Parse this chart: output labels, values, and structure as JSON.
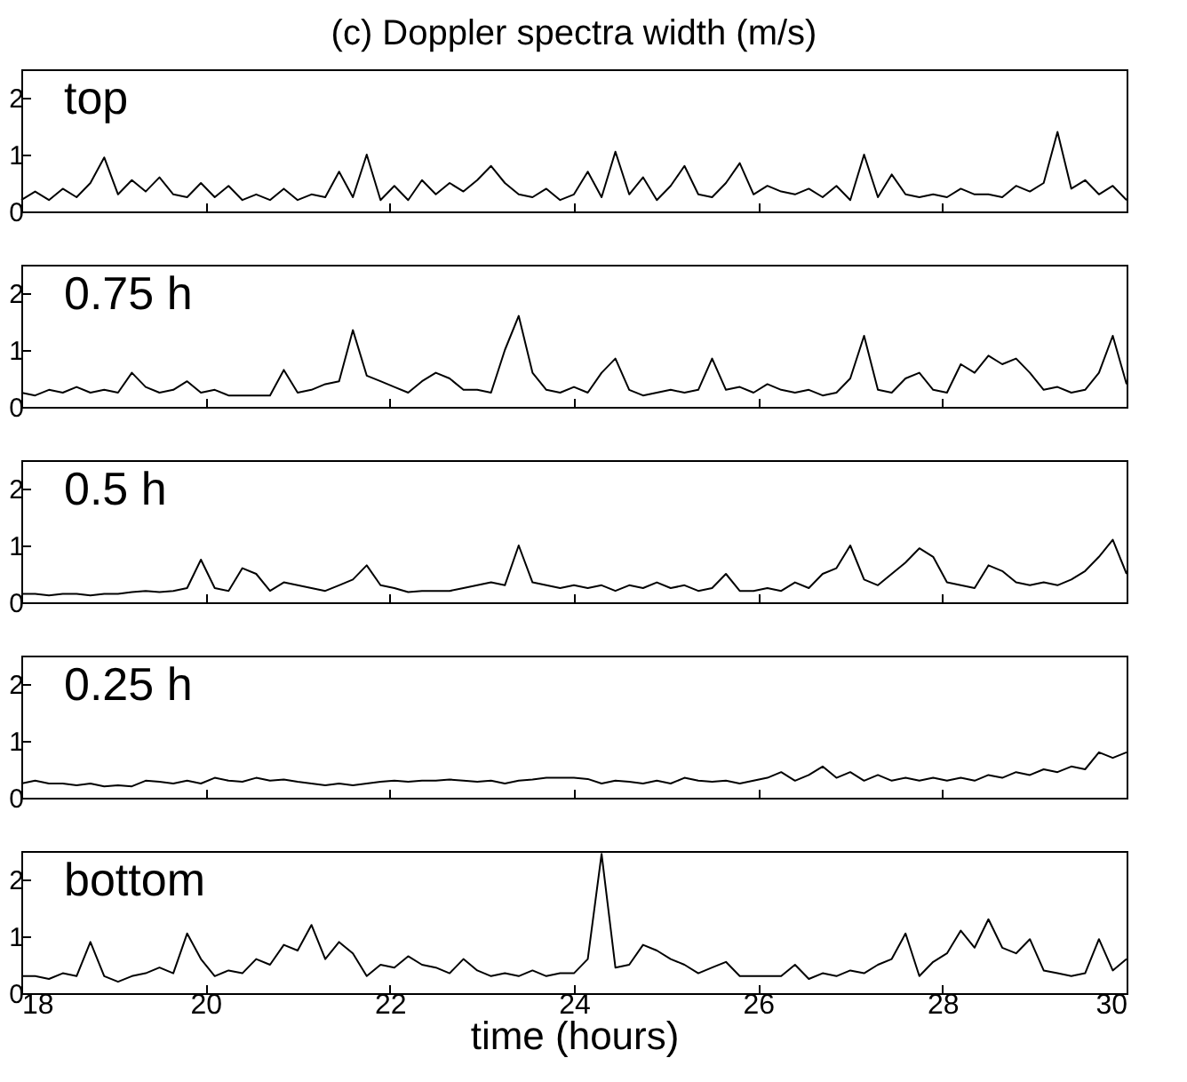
{
  "chart_data": [
    {
      "type": "line",
      "title": "(c) Doppler spectra width (m/s)",
      "annotations": [
        "top"
      ],
      "xlim": [
        18,
        30
      ],
      "xticks": [
        18,
        20,
        22,
        24,
        26,
        28,
        30
      ],
      "ylim": [
        0,
        2.5
      ],
      "yticks": [
        0,
        1,
        2
      ],
      "tick_labels": "y",
      "x": [
        18,
        18.15,
        18.3,
        18.45,
        18.6,
        18.75,
        18.9,
        19.05,
        19.2,
        19.35,
        19.5,
        19.65,
        19.8,
        19.95,
        20.1,
        20.25,
        20.4,
        20.55,
        20.7,
        20.85,
        21,
        21.15,
        21.3,
        21.45,
        21.6,
        21.75,
        21.9,
        22.05,
        22.2,
        22.35,
        22.5,
        22.65,
        22.8,
        22.95,
        23.1,
        23.25,
        23.4,
        23.55,
        23.7,
        23.85,
        24,
        24.15,
        24.3,
        24.45,
        24.6,
        24.75,
        24.9,
        25.05,
        25.2,
        25.35,
        25.5,
        25.65,
        25.8,
        25.95,
        26.1,
        26.25,
        26.4,
        26.55,
        26.7,
        26.85,
        27,
        27.15,
        27.3,
        27.45,
        27.6,
        27.75,
        27.9,
        28.05,
        28.2,
        28.35,
        28.5,
        28.65,
        28.8,
        28.95,
        29.1,
        29.25,
        29.4,
        29.55,
        29.7,
        29.85,
        30
      ],
      "series": [
        {
          "color": "#000000",
          "values": [
            0.2,
            0.35,
            0.2,
            0.4,
            0.25,
            0.5,
            0.95,
            0.3,
            0.55,
            0.35,
            0.6,
            0.3,
            0.25,
            0.5,
            0.25,
            0.45,
            0.2,
            0.3,
            0.2,
            0.4,
            0.2,
            0.3,
            0.25,
            0.7,
            0.25,
            1.0,
            0.2,
            0.45,
            0.2,
            0.55,
            0.3,
            0.5,
            0.35,
            0.55,
            0.8,
            0.5,
            0.3,
            0.25,
            0.4,
            0.2,
            0.3,
            0.7,
            0.25,
            1.05,
            0.3,
            0.6,
            0.2,
            0.45,
            0.8,
            0.3,
            0.25,
            0.5,
            0.85,
            0.3,
            0.45,
            0.35,
            0.3,
            0.4,
            0.25,
            0.45,
            0.2,
            1.0,
            0.25,
            0.65,
            0.3,
            0.25,
            0.3,
            0.25,
            0.4,
            0.3,
            0.3,
            0.25,
            0.45,
            0.35,
            0.5,
            1.4,
            0.4,
            0.55,
            0.3,
            0.45,
            0.2
          ]
        }
      ]
    },
    {
      "type": "line",
      "annotations": [
        "0.75 h"
      ],
      "xlim": [
        18,
        30
      ],
      "xticks": [
        18,
        20,
        22,
        24,
        26,
        28,
        30
      ],
      "ylim": [
        0,
        2.5
      ],
      "yticks": [
        0,
        1,
        2
      ],
      "tick_labels": "y",
      "x": [
        18,
        18.15,
        18.3,
        18.45,
        18.6,
        18.75,
        18.9,
        19.05,
        19.2,
        19.35,
        19.5,
        19.65,
        19.8,
        19.95,
        20.1,
        20.25,
        20.4,
        20.55,
        20.7,
        20.85,
        21,
        21.15,
        21.3,
        21.45,
        21.6,
        21.75,
        21.9,
        22.05,
        22.2,
        22.35,
        22.5,
        22.65,
        22.8,
        22.95,
        23.1,
        23.25,
        23.4,
        23.55,
        23.7,
        23.85,
        24,
        24.15,
        24.3,
        24.45,
        24.6,
        24.75,
        24.9,
        25.05,
        25.2,
        25.35,
        25.5,
        25.65,
        25.8,
        25.95,
        26.1,
        26.25,
        26.4,
        26.55,
        26.7,
        26.85,
        27,
        27.15,
        27.3,
        27.45,
        27.6,
        27.75,
        27.9,
        28.05,
        28.2,
        28.35,
        28.5,
        28.65,
        28.8,
        28.95,
        29.1,
        29.25,
        29.4,
        29.55,
        29.7,
        29.85,
        30
      ],
      "series": [
        {
          "color": "#000000",
          "values": [
            0.25,
            0.2,
            0.3,
            0.25,
            0.35,
            0.25,
            0.3,
            0.25,
            0.6,
            0.35,
            0.25,
            0.3,
            0.45,
            0.25,
            0.3,
            0.2,
            0.2,
            0.2,
            0.2,
            0.65,
            0.25,
            0.3,
            0.4,
            0.45,
            1.35,
            0.55,
            0.45,
            0.35,
            0.25,
            0.45,
            0.6,
            0.5,
            0.3,
            0.3,
            0.25,
            1.0,
            1.6,
            0.6,
            0.3,
            0.25,
            0.35,
            0.25,
            0.6,
            0.85,
            0.3,
            0.2,
            0.25,
            0.3,
            0.25,
            0.3,
            0.85,
            0.3,
            0.35,
            0.25,
            0.4,
            0.3,
            0.25,
            0.3,
            0.2,
            0.25,
            0.5,
            1.25,
            0.3,
            0.25,
            0.5,
            0.6,
            0.3,
            0.25,
            0.75,
            0.6,
            0.9,
            0.75,
            0.85,
            0.6,
            0.3,
            0.35,
            0.25,
            0.3,
            0.6,
            1.25,
            0.4
          ]
        }
      ]
    },
    {
      "type": "line",
      "annotations": [
        "0.5 h"
      ],
      "xlim": [
        18,
        30
      ],
      "xticks": [
        18,
        20,
        22,
        24,
        26,
        28,
        30
      ],
      "ylim": [
        0,
        2.5
      ],
      "yticks": [
        0,
        1,
        2
      ],
      "tick_labels": "y",
      "x": [
        18,
        18.15,
        18.3,
        18.45,
        18.6,
        18.75,
        18.9,
        19.05,
        19.2,
        19.35,
        19.5,
        19.65,
        19.8,
        19.95,
        20.1,
        20.25,
        20.4,
        20.55,
        20.7,
        20.85,
        21,
        21.15,
        21.3,
        21.45,
        21.6,
        21.75,
        21.9,
        22.05,
        22.2,
        22.35,
        22.5,
        22.65,
        22.8,
        22.95,
        23.1,
        23.25,
        23.4,
        23.55,
        23.7,
        23.85,
        24,
        24.15,
        24.3,
        24.45,
        24.6,
        24.75,
        24.9,
        25.05,
        25.2,
        25.35,
        25.5,
        25.65,
        25.8,
        25.95,
        26.1,
        26.25,
        26.4,
        26.55,
        26.7,
        26.85,
        27,
        27.15,
        27.3,
        27.45,
        27.6,
        27.75,
        27.9,
        28.05,
        28.2,
        28.35,
        28.5,
        28.65,
        28.8,
        28.95,
        29.1,
        29.25,
        29.4,
        29.55,
        29.7,
        29.85,
        30
      ],
      "series": [
        {
          "color": "#000000",
          "values": [
            0.15,
            0.15,
            0.12,
            0.15,
            0.15,
            0.12,
            0.15,
            0.15,
            0.18,
            0.2,
            0.18,
            0.2,
            0.25,
            0.75,
            0.25,
            0.2,
            0.6,
            0.5,
            0.2,
            0.35,
            0.3,
            0.25,
            0.2,
            0.3,
            0.4,
            0.65,
            0.3,
            0.25,
            0.18,
            0.2,
            0.2,
            0.2,
            0.25,
            0.3,
            0.35,
            0.3,
            1.0,
            0.35,
            0.3,
            0.25,
            0.3,
            0.25,
            0.3,
            0.2,
            0.3,
            0.25,
            0.35,
            0.25,
            0.3,
            0.2,
            0.25,
            0.5,
            0.2,
            0.2,
            0.25,
            0.2,
            0.35,
            0.25,
            0.5,
            0.6,
            1.0,
            0.4,
            0.3,
            0.5,
            0.7,
            0.95,
            0.8,
            0.35,
            0.3,
            0.25,
            0.65,
            0.55,
            0.35,
            0.3,
            0.35,
            0.3,
            0.4,
            0.55,
            0.8,
            1.1,
            0.5
          ]
        }
      ]
    },
    {
      "type": "line",
      "annotations": [
        "0.25 h"
      ],
      "xlim": [
        18,
        30
      ],
      "xticks": [
        18,
        20,
        22,
        24,
        26,
        28,
        30
      ],
      "ylim": [
        0,
        2.5
      ],
      "yticks": [
        0,
        1,
        2
      ],
      "tick_labels": "y",
      "x": [
        18,
        18.15,
        18.3,
        18.45,
        18.6,
        18.75,
        18.9,
        19.05,
        19.2,
        19.35,
        19.5,
        19.65,
        19.8,
        19.95,
        20.1,
        20.25,
        20.4,
        20.55,
        20.7,
        20.85,
        21,
        21.15,
        21.3,
        21.45,
        21.6,
        21.75,
        21.9,
        22.05,
        22.2,
        22.35,
        22.5,
        22.65,
        22.8,
        22.95,
        23.1,
        23.25,
        23.4,
        23.55,
        23.7,
        23.85,
        24,
        24.15,
        24.3,
        24.45,
        24.6,
        24.75,
        24.9,
        25.05,
        25.2,
        25.35,
        25.5,
        25.65,
        25.8,
        25.95,
        26.1,
        26.25,
        26.4,
        26.55,
        26.7,
        26.85,
        27,
        27.15,
        27.3,
        27.45,
        27.6,
        27.75,
        27.9,
        28.05,
        28.2,
        28.35,
        28.5,
        28.65,
        28.8,
        28.95,
        29.1,
        29.25,
        29.4,
        29.55,
        29.7,
        29.85,
        30
      ],
      "series": [
        {
          "color": "#000000",
          "values": [
            0.25,
            0.3,
            0.25,
            0.25,
            0.22,
            0.25,
            0.2,
            0.22,
            0.2,
            0.3,
            0.28,
            0.25,
            0.3,
            0.25,
            0.35,
            0.3,
            0.28,
            0.35,
            0.3,
            0.32,
            0.28,
            0.25,
            0.22,
            0.25,
            0.22,
            0.25,
            0.28,
            0.3,
            0.28,
            0.3,
            0.3,
            0.32,
            0.3,
            0.28,
            0.3,
            0.25,
            0.3,
            0.32,
            0.35,
            0.35,
            0.35,
            0.33,
            0.25,
            0.3,
            0.28,
            0.25,
            0.3,
            0.25,
            0.35,
            0.3,
            0.28,
            0.3,
            0.25,
            0.3,
            0.35,
            0.45,
            0.3,
            0.4,
            0.55,
            0.35,
            0.45,
            0.3,
            0.4,
            0.3,
            0.35,
            0.3,
            0.35,
            0.3,
            0.35,
            0.3,
            0.4,
            0.35,
            0.45,
            0.4,
            0.5,
            0.45,
            0.55,
            0.5,
            0.8,
            0.7,
            0.8
          ]
        }
      ]
    },
    {
      "type": "line",
      "annotations": [
        "bottom"
      ],
      "xlabel": "time (hours)",
      "xlim": [
        18,
        30
      ],
      "xticks": [
        18,
        20,
        22,
        24,
        26,
        28,
        30
      ],
      "ylim": [
        0,
        2.5
      ],
      "yticks": [
        0,
        1,
        2
      ],
      "x": [
        18,
        18.15,
        18.3,
        18.45,
        18.6,
        18.75,
        18.9,
        19.05,
        19.2,
        19.35,
        19.5,
        19.65,
        19.8,
        19.95,
        20.1,
        20.25,
        20.4,
        20.55,
        20.7,
        20.85,
        21,
        21.15,
        21.3,
        21.45,
        21.6,
        21.75,
        21.9,
        22.05,
        22.2,
        22.35,
        22.5,
        22.65,
        22.8,
        22.95,
        23.1,
        23.25,
        23.4,
        23.55,
        23.7,
        23.85,
        24,
        24.15,
        24.3,
        24.45,
        24.6,
        24.75,
        24.9,
        25.05,
        25.2,
        25.35,
        25.5,
        25.65,
        25.8,
        25.95,
        26.1,
        26.25,
        26.4,
        26.55,
        26.7,
        26.85,
        27,
        27.15,
        27.3,
        27.45,
        27.6,
        27.75,
        27.9,
        28.05,
        28.2,
        28.35,
        28.5,
        28.65,
        28.8,
        28.95,
        29.1,
        29.25,
        29.4,
        29.55,
        29.7,
        29.85,
        30
      ],
      "series": [
        {
          "color": "#000000",
          "values": [
            0.3,
            0.3,
            0.25,
            0.35,
            0.3,
            0.9,
            0.3,
            0.2,
            0.3,
            0.35,
            0.45,
            0.35,
            1.05,
            0.6,
            0.3,
            0.4,
            0.35,
            0.6,
            0.5,
            0.85,
            0.75,
            1.2,
            0.6,
            0.9,
            0.7,
            0.3,
            0.5,
            0.45,
            0.65,
            0.5,
            0.45,
            0.35,
            0.6,
            0.4,
            0.3,
            0.35,
            0.3,
            0.4,
            0.3,
            0.35,
            0.35,
            0.6,
            2.45,
            0.45,
            0.5,
            0.85,
            0.75,
            0.6,
            0.5,
            0.35,
            0.45,
            0.55,
            0.3,
            0.3,
            0.3,
            0.3,
            0.5,
            0.25,
            0.35,
            0.3,
            0.4,
            0.35,
            0.5,
            0.6,
            1.05,
            0.3,
            0.55,
            0.7,
            1.1,
            0.8,
            1.3,
            0.8,
            0.7,
            0.95,
            0.4,
            0.35,
            0.3,
            0.35,
            0.95,
            0.4,
            0.6
          ]
        }
      ]
    }
  ]
}
